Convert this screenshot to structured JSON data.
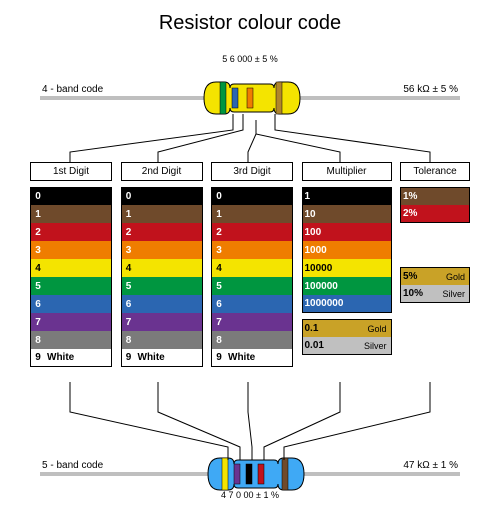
{
  "title": "Resistor colour code",
  "top": {
    "label": "4 - band code",
    "value": "56 kΩ ± 5 %",
    "band_values": "5    6   000       ± 5 %",
    "body_color": "#f4e400",
    "bands": [
      "#009640",
      "#2b66b1",
      "#ef7d00",
      "#b0862b"
    ]
  },
  "bottom": {
    "label": "5 - band code",
    "value": "47 kΩ ± 1 %",
    "band_values": "4   7   0  00        ± 1 %",
    "body_color": "#3fa9f5",
    "bands": [
      "#f4e400",
      "#6a3390",
      "#000000",
      "#c1121c",
      "#6f4a2b"
    ]
  },
  "headers": [
    "1st Digit",
    "2nd Digit",
    "3rd Digit",
    "Multiplier",
    "Tolerance"
  ],
  "digits": [
    {
      "n": "0",
      "bg": "#000000",
      "fg": "#ffffff",
      "name": ""
    },
    {
      "n": "1",
      "bg": "#6f4a2b",
      "fg": "#ffffff",
      "name": ""
    },
    {
      "n": "2",
      "bg": "#c1121c",
      "fg": "#ffffff",
      "name": ""
    },
    {
      "n": "3",
      "bg": "#ef7d00",
      "fg": "#ffffff",
      "name": ""
    },
    {
      "n": "4",
      "bg": "#f4e400",
      "fg": "#000000",
      "name": ""
    },
    {
      "n": "5",
      "bg": "#009640",
      "fg": "#ffffff",
      "name": ""
    },
    {
      "n": "6",
      "bg": "#2b66b1",
      "fg": "#ffffff",
      "name": ""
    },
    {
      "n": "7",
      "bg": "#6a3390",
      "fg": "#ffffff",
      "name": ""
    },
    {
      "n": "8",
      "bg": "#7b7b7b",
      "fg": "#ffffff",
      "name": ""
    },
    {
      "n": "9",
      "bg": "#ffffff",
      "fg": "#000000",
      "name": "White"
    }
  ],
  "multiplier": [
    {
      "v": "1",
      "bg": "#000000",
      "fg": "#ffffff"
    },
    {
      "v": "10",
      "bg": "#6f4a2b",
      "fg": "#ffffff"
    },
    {
      "v": "100",
      "bg": "#c1121c",
      "fg": "#ffffff"
    },
    {
      "v": "1000",
      "bg": "#ef7d00",
      "fg": "#ffffff"
    },
    {
      "v": "10000",
      "bg": "#f4e400",
      "fg": "#000000"
    },
    {
      "v": "100000",
      "bg": "#009640",
      "fg": "#ffffff"
    },
    {
      "v": "1000000",
      "bg": "#2b66b1",
      "fg": "#ffffff"
    }
  ],
  "multiplier_extra": [
    {
      "v": "0.1",
      "name": "Gold",
      "bg": "#c9a227",
      "fg": "#000000"
    },
    {
      "v": "0.01",
      "name": "Silver",
      "bg": "#c0c0c0",
      "fg": "#000000"
    }
  ],
  "tolerance_a": [
    {
      "v": "1%",
      "bg": "#6f4a2b",
      "fg": "#ffffff"
    },
    {
      "v": "2%",
      "bg": "#c1121c",
      "fg": "#ffffff"
    }
  ],
  "tolerance_b": [
    {
      "v": "5%",
      "name": "Gold",
      "bg": "#c9a227",
      "fg": "#000000"
    },
    {
      "v": "10%",
      "name": "Silver",
      "bg": "#c0c0c0",
      "fg": "#000000"
    }
  ],
  "lead_color": "#bfbfbf",
  "line_color": "#000000"
}
